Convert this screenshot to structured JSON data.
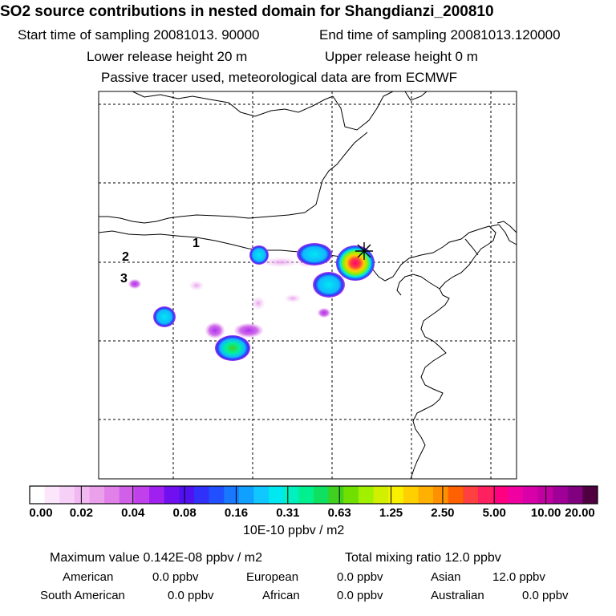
{
  "header": {
    "title": "SO2 source contributions in nested domain for Shangdianzi_200810",
    "start_time": "Start time of sampling 20081013. 90000",
    "end_time": "End time of sampling 20081013.120000",
    "lower_release": "Lower release height   20 m",
    "upper_release": "Upper release height    0 m",
    "tracer_note": "Passive tracer used, meteorological data are from ECMWF"
  },
  "map": {
    "labels": [
      "1",
      "2",
      "3"
    ]
  },
  "colorbar": {
    "ticks": [
      "0.00",
      "0.02",
      "0.04",
      "0.08",
      "0.16",
      "0.31",
      "0.63",
      "1.25",
      "2.50",
      "5.00",
      "10.00",
      "20.00"
    ],
    "unit": "10E-10 ppbv / m2",
    "colors": [
      "#ffffff",
      "#fbe6fb",
      "#f6d0f6",
      "#f2b8f2",
      "#eaa0ea",
      "#e080e8",
      "#d060e8",
      "#c040ec",
      "#a020f0",
      "#7010f0",
      "#5010f0",
      "#3030f8",
      "#2050ff",
      "#1878ff",
      "#10a0ff",
      "#10c8ff",
      "#00e8f0",
      "#00f0c0",
      "#00f090",
      "#10e060",
      "#40d020",
      "#70e000",
      "#a0f000",
      "#d0f000",
      "#f8f000",
      "#ffd000",
      "#ffb000",
      "#ff9000",
      "#ff6000",
      "#ff4040",
      "#ff2060",
      "#ff0080",
      "#f000a0",
      "#d800a8",
      "#c000a0",
      "#a00098",
      "#800080",
      "#500040"
    ]
  },
  "footer": {
    "max_value": "Maximum value  0.142E-08 ppbv / m2",
    "total_mixing": "Total mixing ratio       12.0 ppbv",
    "american_label": "American",
    "american_value": "0.0 ppbv",
    "european_label": "European",
    "european_value": "0.0 ppbv",
    "asian_label": "Asian",
    "asian_value": "12.0 ppbv",
    "south_american_label": "South American",
    "south_american_value": "0.0 ppbv",
    "african_label": "African",
    "african_value": "0.0 ppbv",
    "australian_label": "Australian",
    "australian_value": "0.0 ppbv"
  }
}
